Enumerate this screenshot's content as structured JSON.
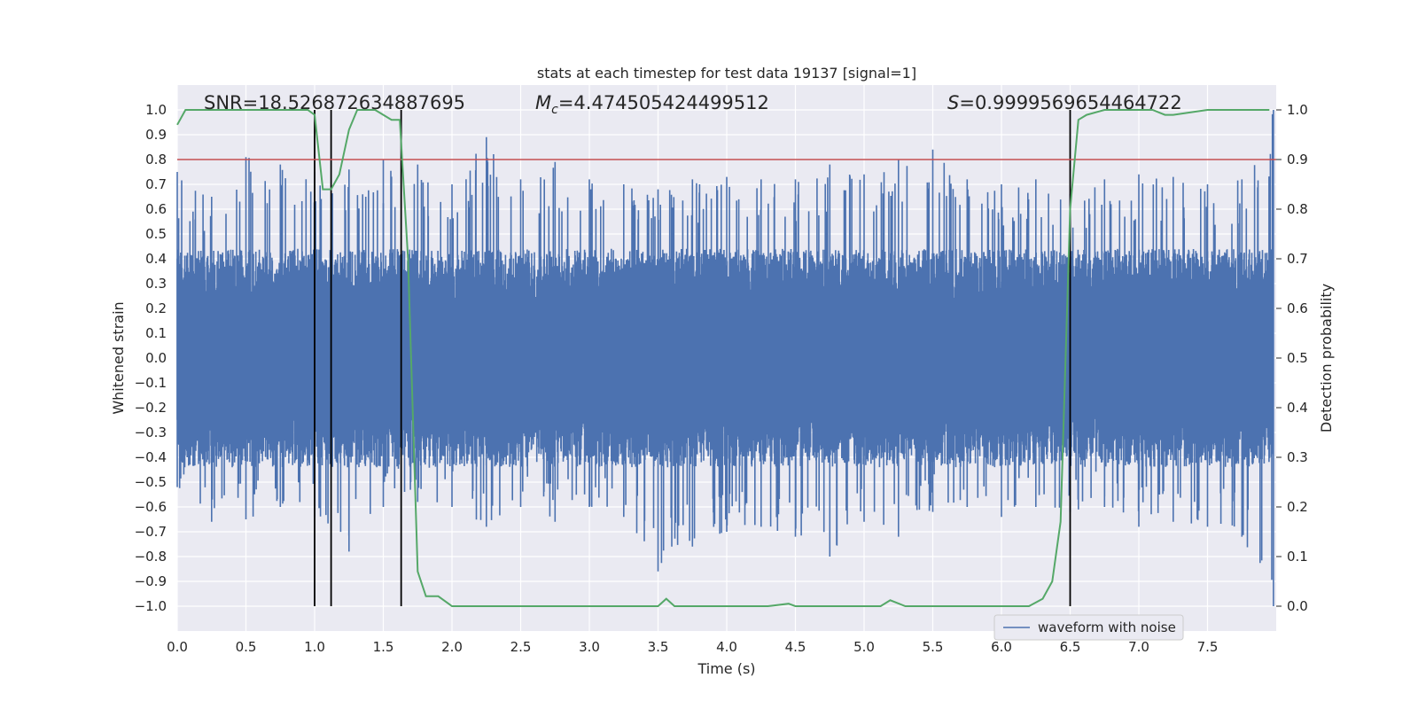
{
  "chart_data": {
    "type": "line",
    "title": "stats at each timestep for test data 19137 [signal=1]",
    "xlabel": "Time (s)",
    "ylabel": "Whitened strain",
    "ylabel_right": "Detection probability",
    "xlim": [
      0.0,
      8.0
    ],
    "ylim": [
      -1.1,
      1.1
    ],
    "ylim_right": [
      -0.05,
      1.05
    ],
    "x_ticks": [
      "0.0",
      "0.5",
      "1.0",
      "1.5",
      "2.0",
      "2.5",
      "3.0",
      "3.5",
      "4.0",
      "4.5",
      "5.0",
      "5.5",
      "6.0",
      "6.5",
      "7.0",
      "7.5"
    ],
    "y_ticks": [
      "1.0",
      "0.9",
      "0.8",
      "0.7",
      "0.6",
      "0.5",
      "0.4",
      "0.3",
      "0.2",
      "0.1",
      "0.0",
      "−0.1",
      "−0.2",
      "−0.3",
      "−0.4",
      "−0.5",
      "−0.6",
      "−0.7",
      "−0.8",
      "−0.9",
      "−1.0"
    ],
    "y_ticks_right": [
      "1.0",
      "0.9",
      "0.8",
      "0.7",
      "0.6",
      "0.5",
      "0.4",
      "0.3",
      "0.2",
      "0.1",
      "0.0"
    ],
    "grid": true,
    "legend_position": "lower-right",
    "annotations": {
      "snr": "SNR=18.526872634887695",
      "mc_symbol": "M",
      "mc_sub": "c",
      "mc_value": "=4.474505424499512",
      "s_symbol": "S",
      "s_value": "=0.9999569654464722"
    },
    "threshold": {
      "value": 0.9,
      "axis": "right",
      "color": "#c44e52"
    },
    "vertical_lines": {
      "x": [
        1.0,
        1.12,
        1.63,
        6.5
      ],
      "ymin": -1.0,
      "ymax": 1.0,
      "color": "#000000"
    },
    "series": [
      {
        "name": "waveform with noise",
        "axis": "left",
        "color": "#4c72b0",
        "envelope": {
          "x": [
            0.0,
            0.25,
            0.5,
            0.75,
            1.0,
            1.25,
            1.5,
            1.75,
            2.0,
            2.25,
            2.5,
            2.75,
            3.0,
            3.25,
            3.5,
            3.75,
            4.0,
            4.25,
            4.5,
            4.75,
            5.0,
            5.25,
            5.5,
            5.75,
            6.0,
            6.25,
            6.5,
            6.75,
            7.0,
            7.25,
            7.5,
            7.75,
            7.98
          ],
          "upper": [
            0.75,
            0.65,
            0.81,
            0.78,
            0.75,
            0.76,
            0.8,
            0.78,
            0.7,
            0.89,
            0.72,
            0.79,
            0.72,
            0.7,
            0.68,
            0.72,
            0.73,
            0.72,
            0.72,
            0.78,
            0.74,
            0.8,
            0.84,
            0.72,
            0.7,
            0.72,
            0.66,
            0.72,
            0.74,
            0.73,
            0.7,
            0.72,
            1.0
          ],
          "lower": [
            -0.52,
            -0.66,
            -0.65,
            -0.6,
            -0.64,
            -0.78,
            -0.6,
            -0.58,
            -0.6,
            -0.68,
            -0.6,
            -0.66,
            -0.6,
            -0.64,
            -0.86,
            -0.76,
            -0.7,
            -0.68,
            -0.72,
            -0.8,
            -0.66,
            -0.72,
            -0.62,
            -0.6,
            -0.64,
            -0.6,
            -0.62,
            -0.6,
            -0.68,
            -0.66,
            -0.68,
            -0.72,
            -1.0
          ]
        }
      },
      {
        "name": "",
        "axis": "right",
        "color": "#55a868",
        "x": [
          0.0,
          0.06,
          0.5,
          0.95,
          1.0,
          1.06,
          1.12,
          1.18,
          1.25,
          1.31,
          1.37,
          1.44,
          1.5,
          1.56,
          1.62,
          1.68,
          1.75,
          1.81,
          1.9,
          2.0,
          2.2,
          2.5,
          3.0,
          3.4,
          3.5,
          3.56,
          3.62,
          3.75,
          4.0,
          4.3,
          4.45,
          4.5,
          4.75,
          5.0,
          5.12,
          5.19,
          5.3,
          5.5,
          6.0,
          6.2,
          6.3,
          6.37,
          6.43,
          6.5,
          6.56,
          6.62,
          6.75,
          6.9,
          7.1,
          7.19,
          7.25,
          7.5,
          7.75,
          7.95
        ],
        "y": [
          0.97,
          1.0,
          1.0,
          1.0,
          0.99,
          0.84,
          0.84,
          0.87,
          0.96,
          1.0,
          1.0,
          1.0,
          0.99,
          0.98,
          0.98,
          0.7,
          0.07,
          0.02,
          0.02,
          0.0,
          0.0,
          0.0,
          0.0,
          0.0,
          0.0,
          0.015,
          0.0,
          0.0,
          0.0,
          0.0,
          0.005,
          0.0,
          0.0,
          0.0,
          0.0,
          0.012,
          0.0,
          0.0,
          0.0,
          0.0,
          0.015,
          0.05,
          0.17,
          0.8,
          0.98,
          0.99,
          1.0,
          1.0,
          1.0,
          0.99,
          0.99,
          1.0,
          1.0,
          1.0
        ]
      }
    ]
  }
}
